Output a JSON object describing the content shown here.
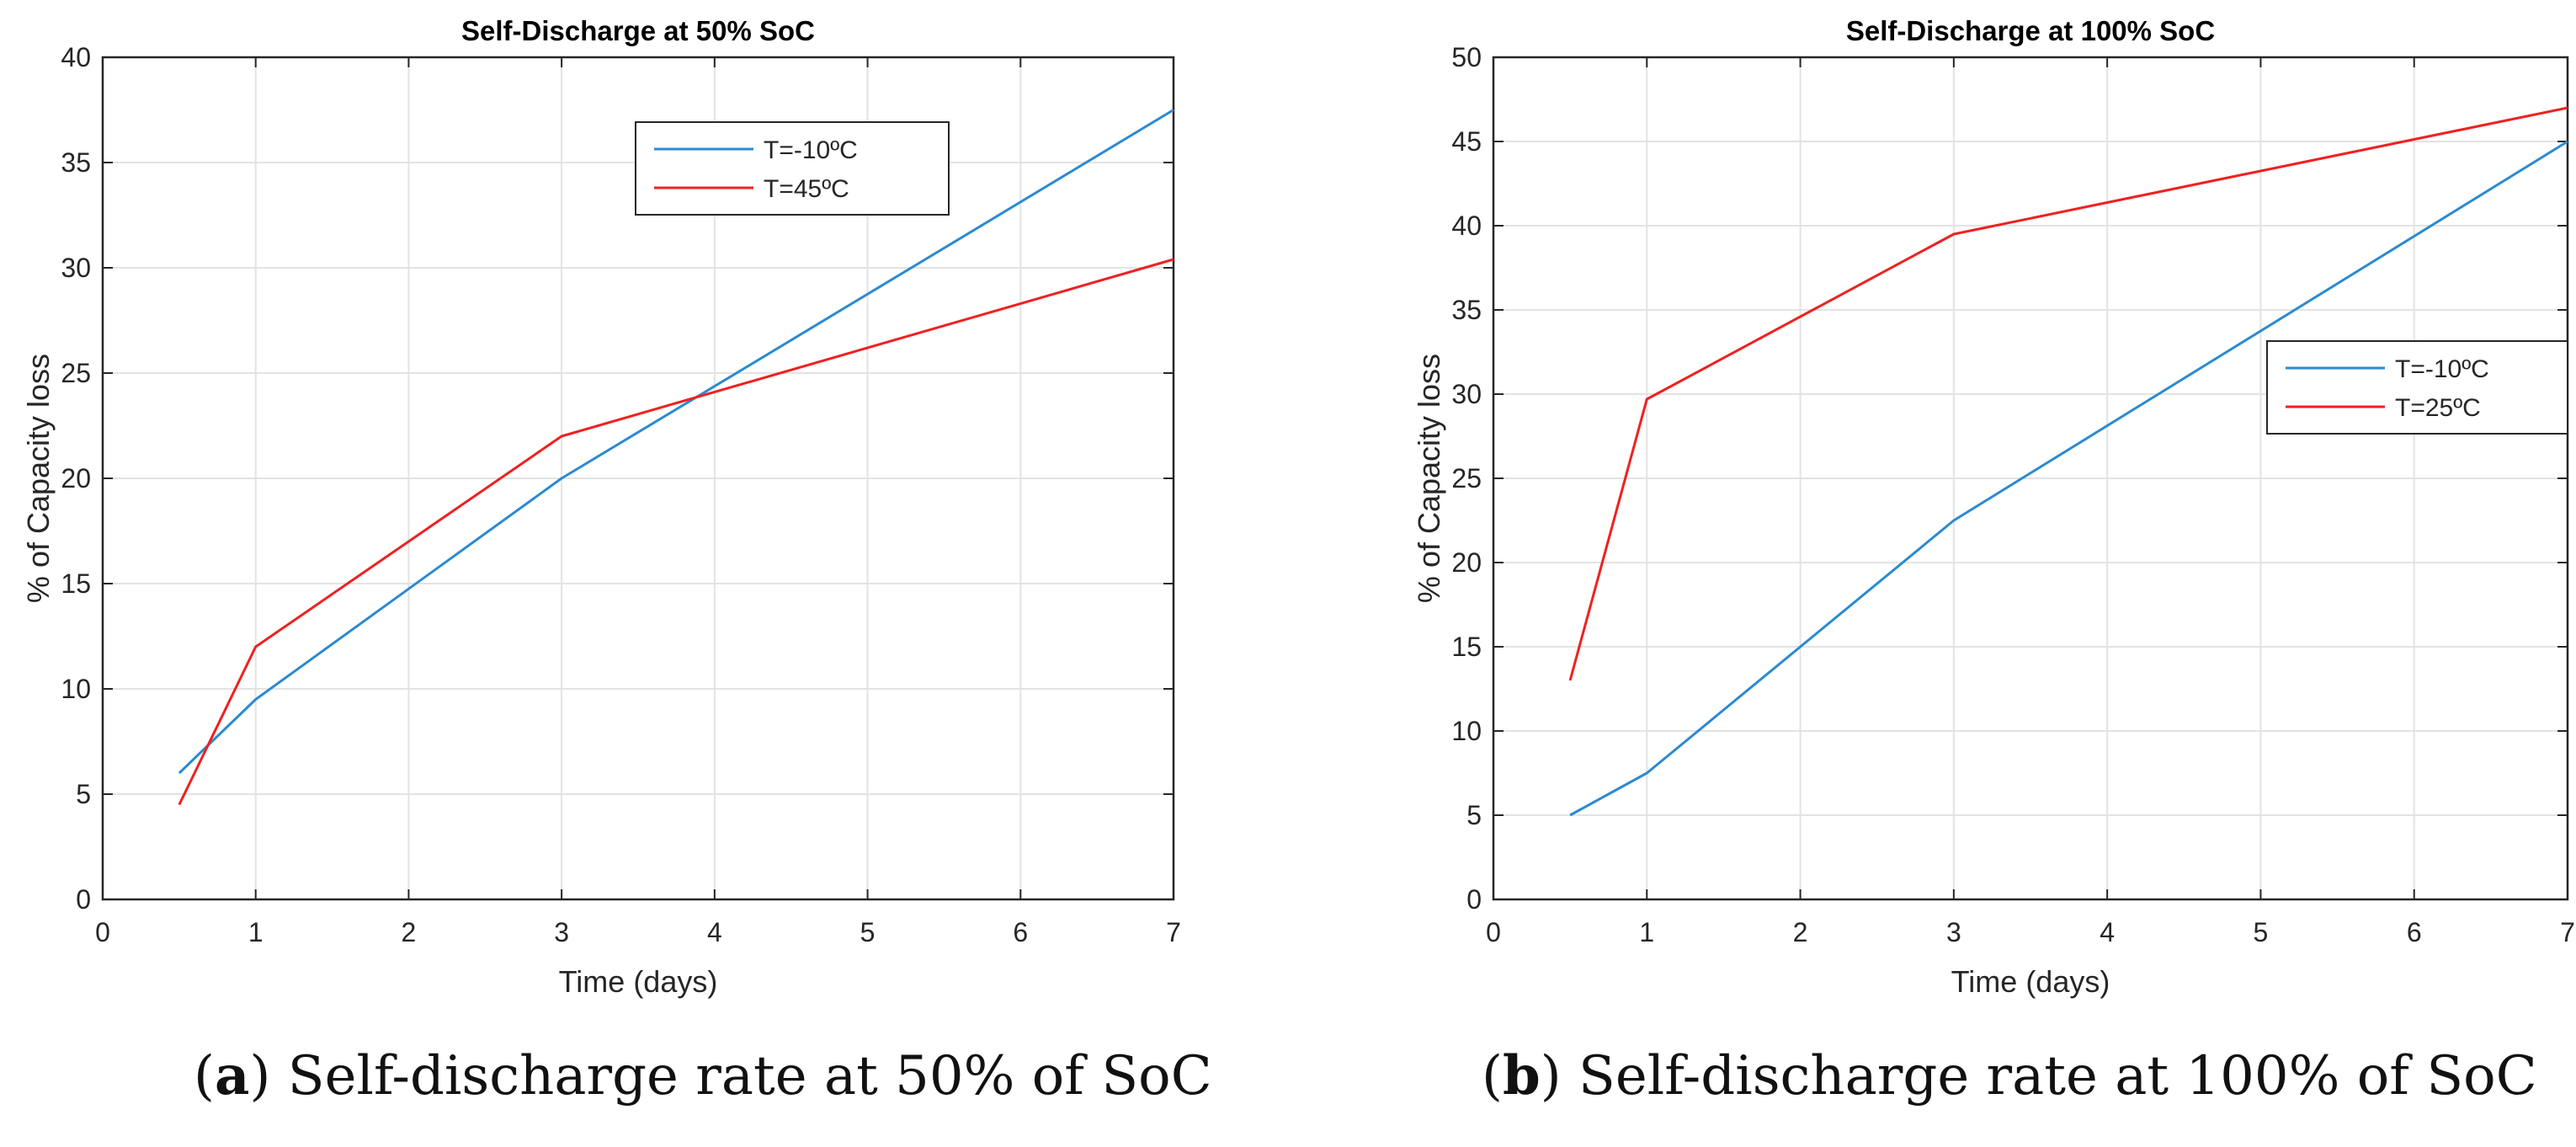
{
  "chart_data": [
    {
      "type": "line",
      "title": "Self-Discharge at 50% SoC",
      "xlabel": "Time (days)",
      "ylabel": "% of Capacity loss",
      "xlim": [
        0,
        7
      ],
      "ylim": [
        0,
        40
      ],
      "xticks": [
        0,
        1,
        2,
        3,
        4,
        5,
        6,
        7
      ],
      "yticks": [
        0,
        5,
        10,
        15,
        20,
        25,
        30,
        35,
        40
      ],
      "grid": true,
      "legend_position": "top-right",
      "series": [
        {
          "name": "T=-10ºC",
          "color": "#2b8ad1",
          "x": [
            0.5,
            1,
            3,
            7
          ],
          "y": [
            6,
            9.5,
            20,
            37.5
          ]
        },
        {
          "name": "T=45ºC",
          "color": "#f02020",
          "x": [
            0.5,
            1,
            3,
            7
          ],
          "y": [
            4.5,
            12,
            22,
            30.4
          ]
        }
      ]
    },
    {
      "type": "line",
      "title": "Self-Discharge at 100% SoC",
      "xlabel": "Time (days)",
      "ylabel": "% of Capacity loss",
      "xlim": [
        0,
        7
      ],
      "ylim": [
        0,
        50
      ],
      "xticks": [
        0,
        1,
        2,
        3,
        4,
        5,
        6,
        7
      ],
      "yticks": [
        0,
        5,
        10,
        15,
        20,
        25,
        30,
        35,
        40,
        45,
        50
      ],
      "grid": true,
      "legend_position": "right",
      "series": [
        {
          "name": "T=-10ºC",
          "color": "#2b8ad1",
          "x": [
            0.5,
            1,
            3,
            7
          ],
          "y": [
            5,
            7.5,
            22.5,
            45
          ]
        },
        {
          "name": "T=25ºC",
          "color": "#f02020",
          "x": [
            0.5,
            1,
            3,
            7
          ],
          "y": [
            13,
            29.7,
            39.5,
            47
          ]
        }
      ]
    }
  ],
  "captions": [
    {
      "label": "(a)",
      "text": " Self-discharge rate at 50% of SoC"
    },
    {
      "label": "(b)",
      "text": " Self-discharge rate at 100% of SoC"
    }
  ]
}
